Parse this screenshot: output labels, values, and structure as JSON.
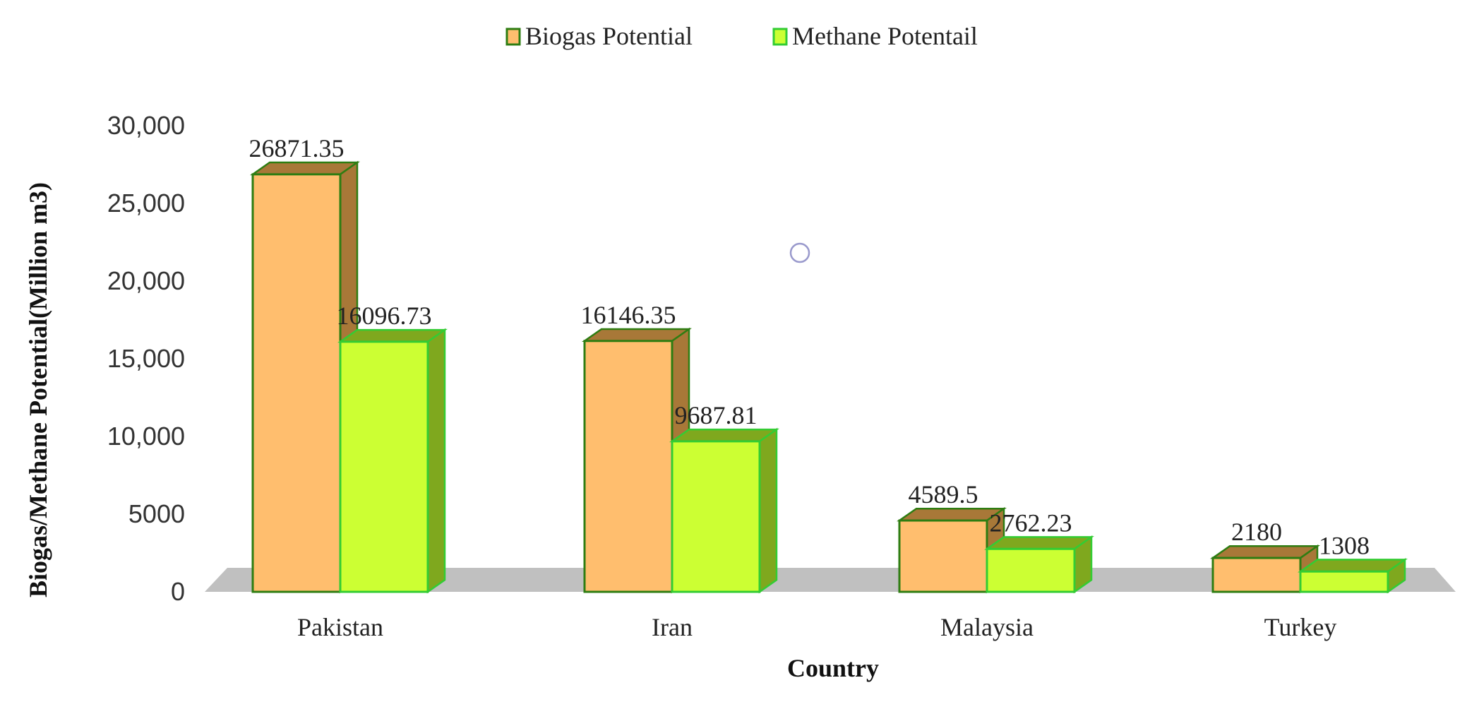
{
  "chart_data": {
    "type": "bar",
    "categories": [
      "Pakistan",
      "Iran",
      "Malaysia",
      "Turkey"
    ],
    "series": [
      {
        "name": "Biogas Potential",
        "values": [
          26871.35,
          16146.35,
          4589.5,
          2180
        ],
        "value_labels": [
          "26871.35",
          "16146.35",
          "4589.5",
          "2180"
        ],
        "color": "#FFBE6E",
        "side_color": "#A87838",
        "edge_color": "#2E7D12"
      },
      {
        "name": "Methane Potentail",
        "values": [
          16096.73,
          9687.81,
          2762.23,
          1308
        ],
        "value_labels": [
          "16096.73",
          "9687.81",
          "2762.23",
          "1308"
        ],
        "color": "#CCFF33",
        "side_color": "#7FA81E",
        "edge_color": "#33CC33"
      }
    ],
    "title": "",
    "xlabel": "Country",
    "ylabel": "Biogas/Methane  Potential(Million  m3)",
    "ylim": [
      0,
      30000
    ],
    "yticks": [
      0,
      5000,
      10000,
      15000,
      20000,
      25000,
      30000
    ],
    "ytick_labels": [
      "0",
      "5000",
      "10,000",
      "15,000",
      "20,000",
      "25,000",
      "30,000"
    ],
    "legend_position": "top-center",
    "grid": false,
    "floor_color": "#C0C0C0"
  }
}
